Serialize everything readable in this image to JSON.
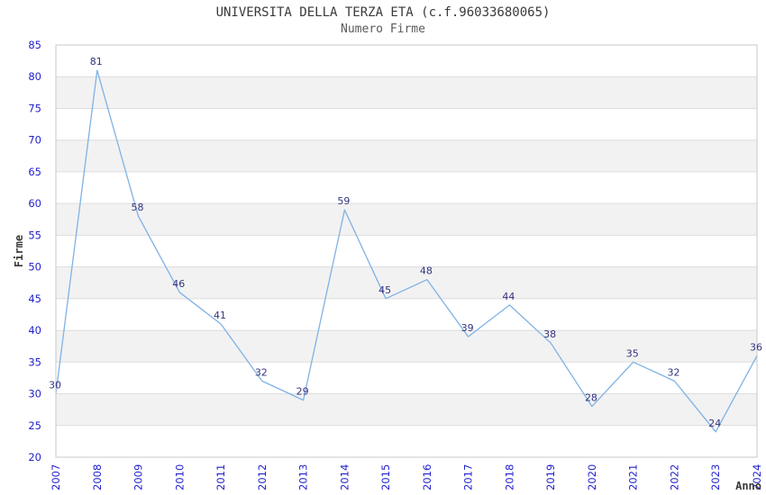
{
  "header": {
    "title": "UNIVERSITA DELLA TERZA ETA (c.f.96033680065)",
    "subtitle": "Numero Firme"
  },
  "chart_data": {
    "type": "line",
    "title": "UNIVERSITA DELLA TERZA ETA (c.f.96033680065)",
    "subtitle": "Numero Firme",
    "xlabel": "Anno",
    "ylabel": "Firme",
    "categories": [
      "2007",
      "2008",
      "2009",
      "2010",
      "2011",
      "2012",
      "2013",
      "2014",
      "2015",
      "2016",
      "2017",
      "2018",
      "2019",
      "2020",
      "2021",
      "2022",
      "2023",
      "2024"
    ],
    "values": [
      30,
      81,
      58,
      46,
      41,
      32,
      29,
      59,
      45,
      48,
      39,
      44,
      38,
      28,
      35,
      32,
      24,
      36
    ],
    "ylim": [
      20,
      85
    ],
    "ytick_step": 5,
    "legend": "none",
    "grid": "horizontal-gridlines-with-alternating-bands",
    "point_labels_shown": true,
    "colors": {
      "line": "#7FB2E5",
      "tick_label": "#2222CC",
      "point_label": "#333380",
      "band": "#F2F2F2",
      "gridline": "#DDDDDD",
      "border": "#C8C8C8",
      "title": "#3A3A3A",
      "subtitle": "#5A5A5A",
      "axis_title": "#3A3A3A",
      "background": "#FFFFFF"
    }
  }
}
